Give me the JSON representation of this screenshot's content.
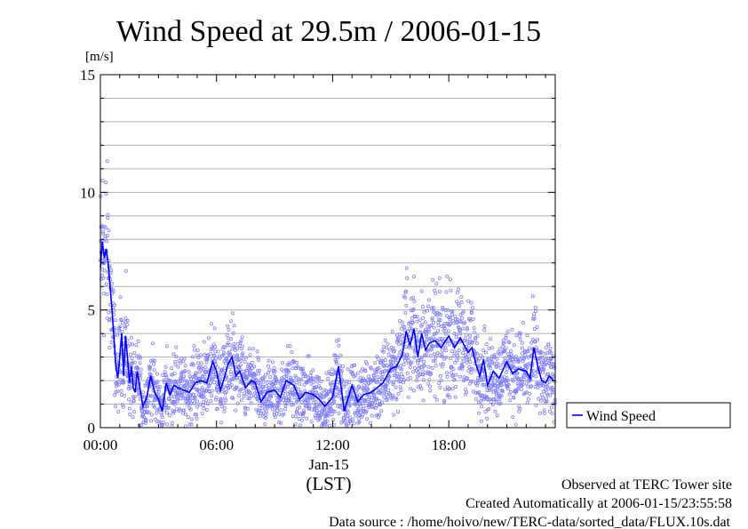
{
  "chart_data": {
    "type": "line",
    "title": "Wind Speed at 29.5m / 2006-01-15",
    "ylabel": "[m/s]",
    "xlabel": "(LST)",
    "date_label": "Jan-15",
    "ylim": [
      0,
      15
    ],
    "xlim_hours": [
      0,
      23.5
    ],
    "yticks": [
      0,
      5,
      10,
      15
    ],
    "ytick_labels": [
      "0",
      "5",
      "10",
      "15"
    ],
    "xticks_hours": [
      0,
      6,
      12,
      18
    ],
    "xtick_labels": [
      "00:00",
      "06:00",
      "12:00",
      "18:00"
    ],
    "grid": true,
    "legend": {
      "position": "right",
      "entries": [
        "Wind Speed"
      ]
    },
    "series": [
      {
        "name": "Wind Speed",
        "color": "#0000ff",
        "scatter_color": "#8080ff",
        "x": [
          0.0,
          0.1,
          0.2,
          0.3,
          0.4,
          0.5,
          0.6,
          0.7,
          0.8,
          0.9,
          1.0,
          1.1,
          1.2,
          1.3,
          1.4,
          1.5,
          1.6,
          1.7,
          1.8,
          1.9,
          2.0,
          2.2,
          2.4,
          2.6,
          2.8,
          3.0,
          3.2,
          3.4,
          3.6,
          3.8,
          4.0,
          4.3,
          4.6,
          4.9,
          5.2,
          5.5,
          5.8,
          6.0,
          6.2,
          6.4,
          6.6,
          6.8,
          7.0,
          7.2,
          7.5,
          7.8,
          8.0,
          8.3,
          8.6,
          9.0,
          9.3,
          9.6,
          10.0,
          10.3,
          10.6,
          11.0,
          11.3,
          11.6,
          12.0,
          12.3,
          12.6,
          13.0,
          13.3,
          13.6,
          14.0,
          14.3,
          14.6,
          15.0,
          15.3,
          15.6,
          15.8,
          16.0,
          16.2,
          16.4,
          16.6,
          16.8,
          17.0,
          17.3,
          17.6,
          18.0,
          18.3,
          18.6,
          19.0,
          19.2,
          19.4,
          19.6,
          19.8,
          20.0,
          20.3,
          20.6,
          21.0,
          21.3,
          21.6,
          22.0,
          22.2,
          22.4,
          22.6,
          22.8,
          23.0,
          23.2,
          23.4
        ],
        "y": [
          6.8,
          7.9,
          7.2,
          7.6,
          7.0,
          6.0,
          5.0,
          3.8,
          2.6,
          2.1,
          3.0,
          4.0,
          2.2,
          3.9,
          3.0,
          1.9,
          2.6,
          1.7,
          1.5,
          2.4,
          1.9,
          0.9,
          1.3,
          2.2,
          1.5,
          1.2,
          0.7,
          1.9,
          1.4,
          1.8,
          1.7,
          1.6,
          1.5,
          1.9,
          2.0,
          1.9,
          2.8,
          2.4,
          1.6,
          2.1,
          2.7,
          3.0,
          2.2,
          2.4,
          1.7,
          2.0,
          1.9,
          1.1,
          1.5,
          1.6,
          1.3,
          2.0,
          1.8,
          1.2,
          1.5,
          1.4,
          1.2,
          0.9,
          1.3,
          2.6,
          0.7,
          1.8,
          1.1,
          1.4,
          1.5,
          1.7,
          1.9,
          2.5,
          2.6,
          3.1,
          4.1,
          3.5,
          4.2,
          3.0,
          4.0,
          3.3,
          3.6,
          3.7,
          3.4,
          3.9,
          3.4,
          3.8,
          3.2,
          3.4,
          2.7,
          2.2,
          2.9,
          1.8,
          2.4,
          2.1,
          2.8,
          2.3,
          2.5,
          2.4,
          2.1,
          3.4,
          2.6,
          2.0,
          1.9,
          2.2,
          2.0
        ]
      }
    ]
  },
  "footer": {
    "line1": "Observed at TERC Tower site",
    "line2": "Created Automatically at 2006-01-15/23:55:58",
    "line3": "Data source : /home/hoivo/new/TERC-data/sorted_data/FLUX.10s.dat"
  }
}
